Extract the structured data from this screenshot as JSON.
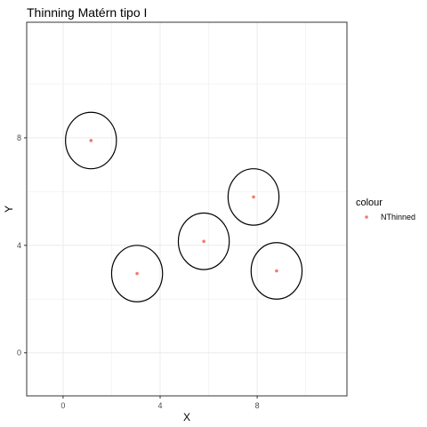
{
  "chart_data": {
    "type": "scatter",
    "title": "Thinning Matérn tipo I",
    "xlabel": "X",
    "ylabel": "Y",
    "xlim": [
      -1.5,
      11.7
    ],
    "ylim": [
      -1.6,
      12.3
    ],
    "x_ticks": [
      0,
      4,
      8
    ],
    "y_ticks": [
      0,
      4,
      8
    ],
    "grid": true,
    "legend": {
      "title": "colour",
      "entries": [
        "NThinned"
      ],
      "placement": "right"
    },
    "points_color": "#F8766D",
    "circle_color": "#000000",
    "circle_radius": 1.05,
    "points": [
      {
        "x": 1.15,
        "y": 7.9
      },
      {
        "x": 3.05,
        "y": 2.95
      },
      {
        "x": 5.8,
        "y": 4.15
      },
      {
        "x": 7.85,
        "y": 5.8
      },
      {
        "x": 8.8,
        "y": 3.05
      }
    ]
  }
}
